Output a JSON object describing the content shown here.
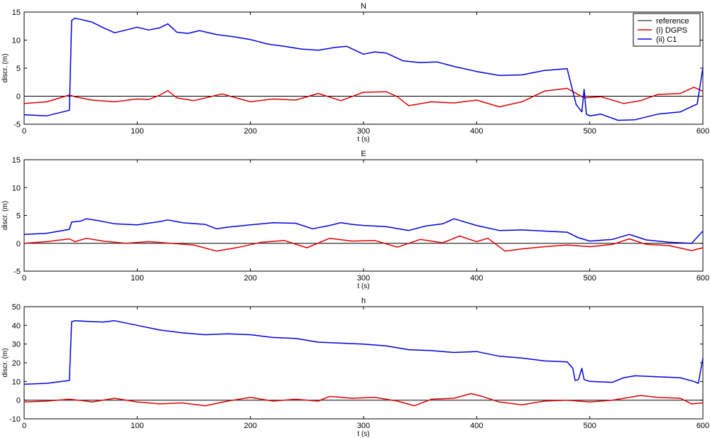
{
  "chart_data": [
    {
      "type": "line",
      "title": "N",
      "xlabel": "t (s)",
      "ylabel": "discr. (m)",
      "xlim": [
        0,
        600
      ],
      "ylim": [
        -5,
        15
      ],
      "xticks": [
        0,
        100,
        200,
        300,
        400,
        500,
        600
      ],
      "yticks": [
        -5,
        0,
        5,
        10,
        15
      ],
      "reference": 0,
      "legend": {
        "placement": "top-right",
        "entries": [
          "reference",
          "(i) DGPS",
          "(ii) C1"
        ]
      },
      "series": [
        {
          "name": "reference",
          "color": "#000000",
          "x": [
            0,
            600
          ],
          "y": [
            0,
            0
          ]
        },
        {
          "name": "(i) DGPS",
          "color": "#e00000",
          "x": [
            0,
            20,
            40,
            45,
            60,
            80,
            100,
            110,
            120,
            127,
            135,
            150,
            175,
            200,
            220,
            240,
            260,
            280,
            300,
            320,
            330,
            340,
            360,
            380,
            400,
            420,
            440,
            460,
            480,
            495,
            510,
            530,
            545,
            560,
            580,
            592,
            600
          ],
          "y": [
            -1.3,
            -1.0,
            0.2,
            -0.1,
            -0.7,
            -1.0,
            -0.5,
            -0.6,
            0.2,
            1.0,
            -0.3,
            -0.8,
            0.4,
            -1.0,
            -0.5,
            -0.7,
            0.5,
            -0.8,
            0.7,
            0.8,
            -0.1,
            -1.7,
            -1.0,
            -1.2,
            -0.7,
            -1.9,
            -1.0,
            0.9,
            1.4,
            -0.3,
            -0.1,
            -1.3,
            -0.8,
            0.3,
            0.5,
            1.6,
            0.9
          ]
        },
        {
          "name": "(ii) C1",
          "color": "#0000e0",
          "x": [
            0,
            20,
            40,
            42,
            45,
            50,
            60,
            70,
            80,
            90,
            100,
            110,
            120,
            127,
            135,
            145,
            155,
            170,
            185,
            200,
            215,
            230,
            245,
            260,
            275,
            285,
            300,
            310,
            320,
            335,
            350,
            365,
            380,
            400,
            420,
            440,
            460,
            480,
            488,
            493,
            495,
            497,
            500,
            510,
            525,
            540,
            560,
            580,
            595,
            600
          ],
          "y": [
            -3.3,
            -3.5,
            -2.5,
            13.5,
            13.9,
            13.7,
            13.2,
            12.2,
            11.3,
            11.8,
            12.3,
            11.8,
            12.2,
            12.9,
            11.4,
            11.2,
            11.7,
            11.0,
            10.6,
            10.1,
            9.3,
            8.9,
            8.4,
            8.2,
            8.7,
            8.9,
            7.5,
            7.9,
            7.7,
            6.3,
            6.0,
            6.1,
            5.3,
            4.4,
            3.7,
            3.8,
            4.6,
            4.9,
            -1.5,
            -2.8,
            1.2,
            -3.2,
            -3.5,
            -3.2,
            -4.3,
            -4.2,
            -3.2,
            -2.8,
            -1.4,
            5.1
          ]
        }
      ]
    },
    {
      "type": "line",
      "title": "E",
      "xlabel": "t (s)",
      "ylabel": "discr. (m)",
      "xlim": [
        0,
        600
      ],
      "ylim": [
        -5,
        15
      ],
      "xticks": [
        0,
        100,
        200,
        300,
        400,
        500,
        600
      ],
      "yticks": [
        -5,
        0,
        5,
        10,
        15
      ],
      "reference": 0,
      "series": [
        {
          "name": "reference",
          "color": "#000000",
          "x": [
            0,
            600
          ],
          "y": [
            0,
            0
          ]
        },
        {
          "name": "(i) DGPS",
          "color": "#e00000",
          "x": [
            0,
            20,
            40,
            45,
            55,
            70,
            90,
            110,
            130,
            150,
            170,
            190,
            210,
            230,
            250,
            270,
            290,
            310,
            330,
            350,
            370,
            385,
            400,
            410,
            425,
            440,
            460,
            480,
            500,
            520,
            535,
            550,
            570,
            590,
            600
          ],
          "y": [
            0.0,
            0.3,
            0.8,
            0.3,
            0.9,
            0.4,
            0.0,
            0.3,
            0.0,
            -0.3,
            -1.4,
            -0.7,
            0.2,
            0.5,
            -0.8,
            0.9,
            0.4,
            0.5,
            -0.7,
            0.7,
            0.1,
            1.3,
            0.3,
            0.9,
            -1.4,
            -1.0,
            -0.6,
            -0.3,
            -0.6,
            -0.2,
            0.8,
            -0.2,
            -0.4,
            -1.3,
            -0.8
          ]
        },
        {
          "name": "(ii) C1",
          "color": "#0000e0",
          "x": [
            0,
            20,
            40,
            42,
            50,
            55,
            65,
            80,
            100,
            120,
            127,
            140,
            160,
            170,
            180,
            200,
            220,
            240,
            255,
            270,
            280,
            290,
            300,
            320,
            340,
            355,
            370,
            380,
            400,
            420,
            440,
            460,
            480,
            490,
            500,
            520,
            535,
            550,
            570,
            590,
            600
          ],
          "y": [
            1.6,
            1.8,
            2.5,
            3.8,
            4.0,
            4.4,
            4.1,
            3.5,
            3.3,
            3.9,
            4.2,
            3.7,
            3.4,
            2.6,
            2.9,
            3.3,
            3.7,
            3.6,
            2.6,
            3.2,
            3.7,
            3.4,
            3.2,
            3.0,
            2.3,
            3.1,
            3.5,
            4.4,
            3.2,
            2.3,
            2.4,
            2.2,
            2.0,
            1.0,
            0.4,
            0.7,
            1.6,
            0.6,
            0.2,
            0.0,
            2.2
          ]
        }
      ]
    },
    {
      "type": "line",
      "title": "h",
      "xlabel": "t (s)",
      "ylabel": "discr. (m)",
      "xlim": [
        0,
        600
      ],
      "ylim": [
        -10,
        50
      ],
      "xticks": [
        0,
        100,
        200,
        300,
        400,
        500,
        600
      ],
      "yticks": [
        -10,
        0,
        10,
        20,
        30,
        40,
        50
      ],
      "reference": 0,
      "series": [
        {
          "name": "reference",
          "color": "#000000",
          "x": [
            0,
            600
          ],
          "y": [
            0,
            0
          ]
        },
        {
          "name": "(i) DGPS",
          "color": "#e00000",
          "x": [
            0,
            20,
            40,
            55,
            60,
            80,
            100,
            120,
            140,
            160,
            180,
            200,
            220,
            240,
            260,
            270,
            290,
            310,
            330,
            345,
            360,
            380,
            395,
            405,
            420,
            440,
            460,
            480,
            500,
            520,
            545,
            560,
            580,
            590,
            600
          ],
          "y": [
            -1.0,
            -0.5,
            0.5,
            -0.5,
            -1.0,
            1.0,
            -1.0,
            -2.0,
            -1.5,
            -3.0,
            -0.5,
            1.5,
            -0.5,
            0.5,
            -0.5,
            2.0,
            1.0,
            1.5,
            -0.5,
            -3.0,
            0.5,
            1.0,
            3.5,
            2.0,
            -1.0,
            -2.5,
            -0.5,
            0.0,
            -1.0,
            0.0,
            2.5,
            1.5,
            1.0,
            -2.0,
            -1.5
          ]
        },
        {
          "name": "(ii) C1",
          "color": "#0000e0",
          "x": [
            0,
            20,
            40,
            42,
            45,
            60,
            70,
            80,
            100,
            120,
            140,
            160,
            180,
            200,
            220,
            240,
            260,
            280,
            300,
            320,
            340,
            360,
            380,
            400,
            420,
            440,
            460,
            480,
            485,
            487,
            490,
            493,
            495,
            500,
            520,
            530,
            540,
            560,
            580,
            592,
            596,
            600
          ],
          "y": [
            8.5,
            9.0,
            10.5,
            42.0,
            42.5,
            42.0,
            41.8,
            42.5,
            40.0,
            37.5,
            36.0,
            35.0,
            35.5,
            35.0,
            33.5,
            33.0,
            31.0,
            30.5,
            30.0,
            29.0,
            27.0,
            26.5,
            25.5,
            26.0,
            23.5,
            22.5,
            21.0,
            20.5,
            17.0,
            10.5,
            11.0,
            17.0,
            11.0,
            10.0,
            9.5,
            12.0,
            13.0,
            12.5,
            12.0,
            10.0,
            9.0,
            22.5
          ]
        }
      ]
    }
  ]
}
